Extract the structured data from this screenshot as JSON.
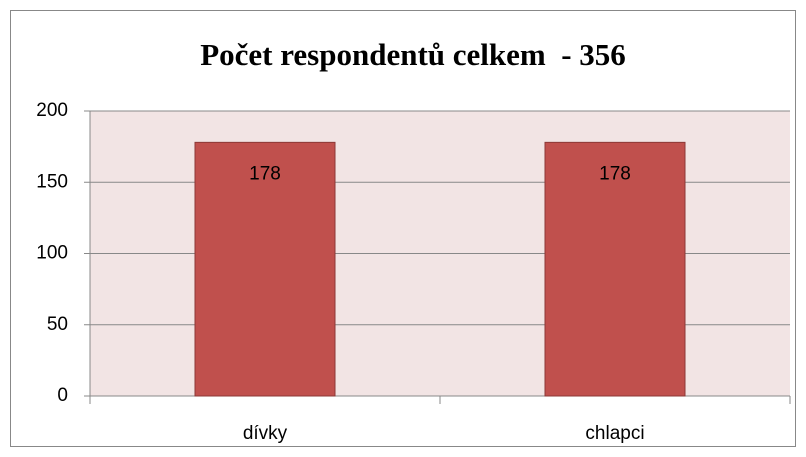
{
  "chart_data": {
    "type": "bar",
    "title": "Počet respondentů celkem  - 356",
    "categories": [
      "dívky",
      "chlapci"
    ],
    "values": [
      178,
      178
    ],
    "color": "#c0504d",
    "ylim": [
      0,
      200
    ],
    "yticks": [
      0,
      50,
      100,
      150,
      200
    ],
    "grid": true
  }
}
